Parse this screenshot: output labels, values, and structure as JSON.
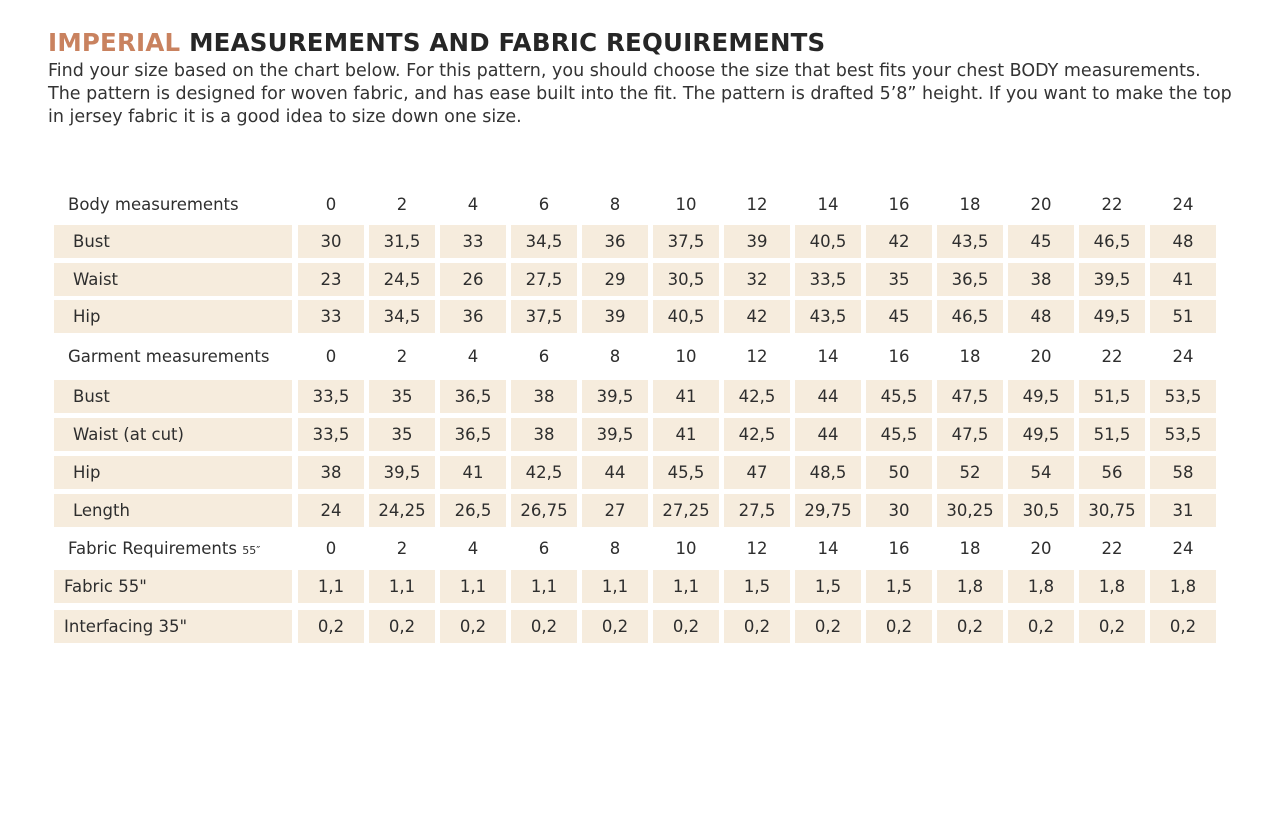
{
  "heading": {
    "accent": "IMPERIAL",
    "rest": " MEASUREMENTS AND FABRIC REQUIREMENTS"
  },
  "intro": {
    "line1": "Find your size based on the chart below. For this pattern, you should choose the size that best fits your chest BODY measurements.",
    "line2": "The pattern is designed for woven fabric, and has ease built into the fit. The pattern is drafted 5’8” height. If you want to make the top",
    "line3": "in jersey fabric it is a good idea to size down one size."
  },
  "colors": {
    "accent": "#c9825f",
    "row_fill": "#f6ecdd",
    "text": "#2e2e2e"
  },
  "table": {
    "sizes": [
      "0",
      "2",
      "4",
      "6",
      "8",
      "10",
      "12",
      "14",
      "16",
      "18",
      "20",
      "22",
      "24"
    ],
    "sections": [
      {
        "header": "Body measurements",
        "header_suffix": "",
        "rows": [
          {
            "label": "Bust",
            "values": [
              "30",
              "31,5",
              "33",
              "34,5",
              "36",
              "37,5",
              "39",
              "40,5",
              "42",
              "43,5",
              "45",
              "46,5",
              "48"
            ]
          },
          {
            "label": "Waist",
            "values": [
              "23",
              "24,5",
              "26",
              "27,5",
              "29",
              "30,5",
              "32",
              "33,5",
              "35",
              "36,5",
              "38",
              "39,5",
              "41"
            ]
          },
          {
            "label": "Hip",
            "values": [
              "33",
              "34,5",
              "36",
              "37,5",
              "39",
              "40,5",
              "42",
              "43,5",
              "45",
              "46,5",
              "48",
              "49,5",
              "51"
            ]
          }
        ]
      },
      {
        "header": "Garment measurements",
        "header_suffix": "",
        "rows": [
          {
            "label": "Bust",
            "values": [
              "33,5",
              "35",
              "36,5",
              "38",
              "39,5",
              "41",
              "42,5",
              "44",
              "45,5",
              "47,5",
              "49,5",
              "51,5",
              "53,5"
            ]
          },
          {
            "label": "Waist  (at cut)",
            "values": [
              "33,5",
              "35",
              "36,5",
              "38",
              "39,5",
              "41",
              "42,5",
              "44",
              "45,5",
              "47,5",
              "49,5",
              "51,5",
              "53,5"
            ]
          },
          {
            "label": "Hip",
            "values": [
              "38",
              "39,5",
              "41",
              "42,5",
              "44",
              "45,5",
              "47",
              "48,5",
              "50",
              "52",
              "54",
              "56",
              "58"
            ]
          },
          {
            "label": "Length",
            "values": [
              "24",
              "24,25",
              "26,5",
              "26,75",
              "27",
              "27,25",
              "27,5",
              "29,75",
              "30",
              "30,25",
              "30,5",
              "30,75",
              "31"
            ]
          }
        ]
      },
      {
        "header": "Fabric Requirements",
        "header_suffix": "55″",
        "rows": [
          {
            "label": "Fabric 55\"",
            "values": [
              "1,1",
              "1,1",
              "1,1",
              "1,1",
              "1,1",
              "1,1",
              "1,5",
              "1,5",
              "1,5",
              "1,8",
              "1,8",
              "1,8",
              "1,8"
            ]
          },
          {
            "label": "Interfacing 35\"",
            "values": [
              "0,2",
              "0,2",
              "0,2",
              "0,2",
              "0,2",
              "0,2",
              "0,2",
              "0,2",
              "0,2",
              "0,2",
              "0,2",
              "0,2",
              "0,2"
            ]
          }
        ]
      }
    ]
  }
}
